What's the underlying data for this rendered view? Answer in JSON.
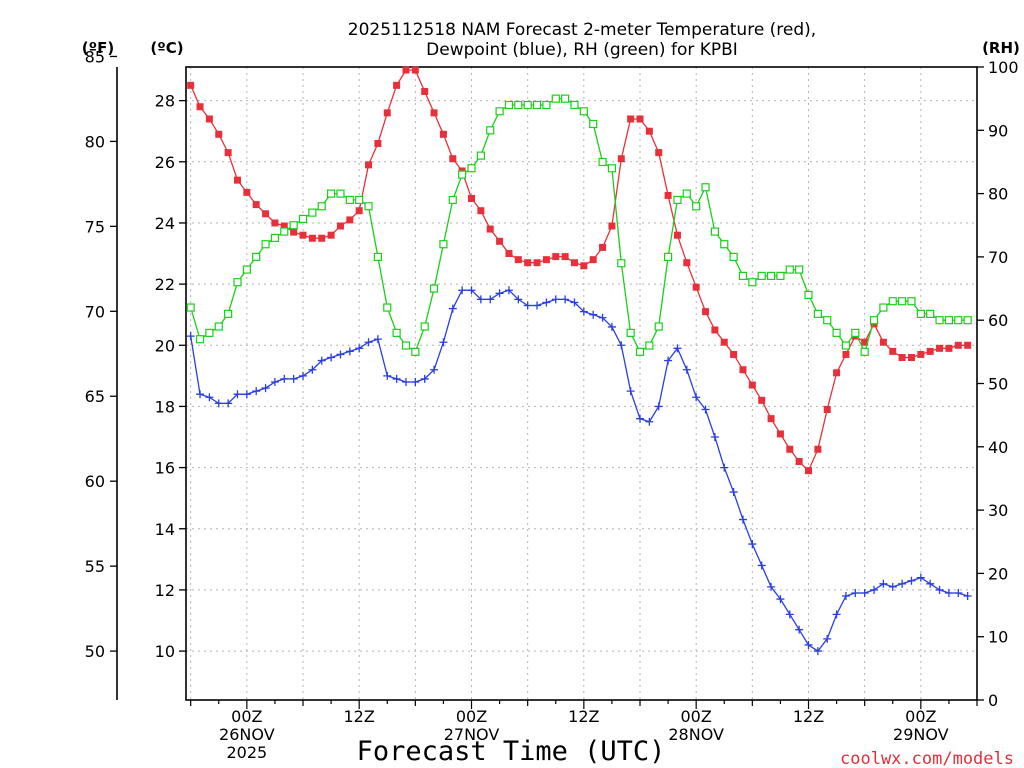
{
  "chart_data": {
    "type": "line",
    "title_line1": "2025112518 NAM Forecast 2-meter Temperature (red),",
    "title_line2": "Dewpoint (blue), RH (green) for KPBI",
    "xlabel": "Forecast Time (UTC)",
    "credit": "coolwx.com/models",
    "left_unit_f": "(ºF)",
    "left_unit_c": "(ºC)",
    "right_unit": "(RH)",
    "x_start_hour": -6.5,
    "x_end_hour": 78,
    "x_tick_labels": [
      {
        "hour": 0,
        "lines": [
          "00Z",
          "26NOV",
          "2025"
        ]
      },
      {
        "hour": 12,
        "lines": [
          "12Z"
        ]
      },
      {
        "hour": 24,
        "lines": [
          "00Z",
          "27NOV"
        ]
      },
      {
        "hour": 36,
        "lines": [
          "12Z"
        ]
      },
      {
        "hour": 48,
        "lines": [
          "00Z",
          "28NOV"
        ]
      },
      {
        "hour": 60,
        "lines": [
          "12Z"
        ]
      },
      {
        "hour": 72,
        "lines": [
          "00Z",
          "29NOV"
        ]
      }
    ],
    "y_celsius": {
      "range": [
        8.4,
        29.1
      ],
      "ticks": [
        10,
        12,
        14,
        16,
        18,
        20,
        22,
        24,
        26,
        28
      ]
    },
    "y_fahrenheit": {
      "range": [
        47.12,
        84.38
      ],
      "ticks": [
        50,
        55,
        60,
        65,
        70,
        75,
        80,
        85
      ]
    },
    "y_rh": {
      "range": [
        0,
        100
      ],
      "ticks": [
        0,
        10,
        20,
        30,
        40,
        50,
        60,
        70,
        80,
        90,
        100
      ]
    },
    "hours": [
      -6,
      -5,
      -4,
      -3,
      -2,
      -1,
      0,
      1,
      2,
      3,
      4,
      5,
      6,
      7,
      8,
      9,
      10,
      11,
      12,
      13,
      14,
      15,
      16,
      17,
      18,
      19,
      20,
      21,
      22,
      23,
      24,
      25,
      26,
      27,
      28,
      29,
      30,
      31,
      32,
      33,
      34,
      35,
      36,
      37,
      38,
      39,
      40,
      41,
      42,
      43,
      44,
      45,
      46,
      47,
      48,
      49,
      50,
      51,
      52,
      53,
      54,
      55,
      56,
      57,
      58,
      59,
      60,
      61,
      62,
      63,
      64,
      65,
      66,
      67,
      68,
      69,
      70,
      71,
      72,
      73,
      74,
      75,
      76,
      77
    ],
    "series": [
      {
        "name": "Temperature",
        "units": "°C",
        "axis": "celsius",
        "color": "#e8303a",
        "marker": "filled-square",
        "values": [
          28.5,
          27.8,
          27.4,
          26.9,
          26.3,
          25.4,
          25.0,
          24.6,
          24.3,
          24.0,
          23.9,
          23.7,
          23.6,
          23.5,
          23.5,
          23.6,
          23.9,
          24.1,
          24.4,
          25.9,
          26.6,
          27.6,
          28.5,
          29.0,
          29.0,
          28.3,
          27.6,
          26.9,
          26.1,
          25.7,
          24.8,
          24.4,
          23.8,
          23.4,
          23.0,
          22.8,
          22.7,
          22.7,
          22.8,
          22.9,
          22.9,
          22.7,
          22.6,
          22.8,
          23.2,
          23.9,
          26.1,
          27.4,
          27.4,
          27.0,
          26.3,
          24.9,
          23.6,
          22.7,
          21.9,
          21.1,
          20.5,
          20.1,
          19.7,
          19.2,
          18.7,
          18.2,
          17.6,
          17.1,
          16.6,
          16.2,
          15.9,
          16.6,
          17.9,
          19.1,
          19.7,
          20.3,
          20.1,
          20.7,
          20.1,
          19.8,
          19.6,
          19.6,
          19.7,
          19.8,
          19.9,
          19.9,
          20.0,
          20.0
        ]
      },
      {
        "name": "Dewpoint",
        "units": "°C",
        "axis": "celsius",
        "color": "#2a3fe0",
        "marker": "plus",
        "values": [
          20.3,
          18.4,
          18.3,
          18.1,
          18.1,
          18.4,
          18.4,
          18.5,
          18.6,
          18.8,
          18.9,
          18.9,
          19.0,
          19.2,
          19.5,
          19.6,
          19.7,
          19.8,
          19.9,
          20.1,
          20.2,
          19.0,
          18.9,
          18.8,
          18.8,
          18.9,
          19.2,
          20.1,
          21.2,
          21.8,
          21.8,
          21.5,
          21.5,
          21.7,
          21.8,
          21.5,
          21.3,
          21.3,
          21.4,
          21.5,
          21.5,
          21.4,
          21.1,
          21.0,
          20.9,
          20.6,
          20.0,
          18.5,
          17.6,
          17.5,
          18.0,
          19.5,
          19.9,
          19.2,
          18.3,
          17.9,
          17.0,
          16.0,
          15.2,
          14.3,
          13.5,
          12.8,
          12.1,
          11.7,
          11.2,
          10.7,
          10.2,
          10.0,
          10.4,
          11.2,
          11.8,
          11.9,
          11.9,
          12.0,
          12.2,
          12.1,
          12.2,
          12.3,
          12.4,
          12.2,
          12.0,
          11.9,
          11.9,
          11.8
        ]
      },
      {
        "name": "Relative Humidity",
        "units": "%",
        "axis": "rh",
        "color": "#1ad01a",
        "marker": "open-square",
        "values": [
          62,
          57,
          58,
          59,
          61,
          66,
          68,
          70,
          72,
          73,
          74,
          75,
          76,
          77,
          78,
          80,
          80,
          79,
          79,
          78,
          70,
          62,
          58,
          56,
          55,
          59,
          65,
          72,
          79,
          83,
          84,
          86,
          90,
          93,
          94,
          94,
          94,
          94,
          94,
          95,
          95,
          94,
          93,
          91,
          85,
          84,
          69,
          58,
          55,
          56,
          59,
          70,
          79,
          80,
          78,
          81,
          74,
          72,
          70,
          67,
          66,
          67,
          67,
          67,
          68,
          68,
          64,
          61,
          60,
          58,
          56,
          58,
          55,
          60,
          62,
          63,
          63,
          63,
          61,
          61,
          60,
          60,
          60,
          60
        ]
      }
    ]
  }
}
